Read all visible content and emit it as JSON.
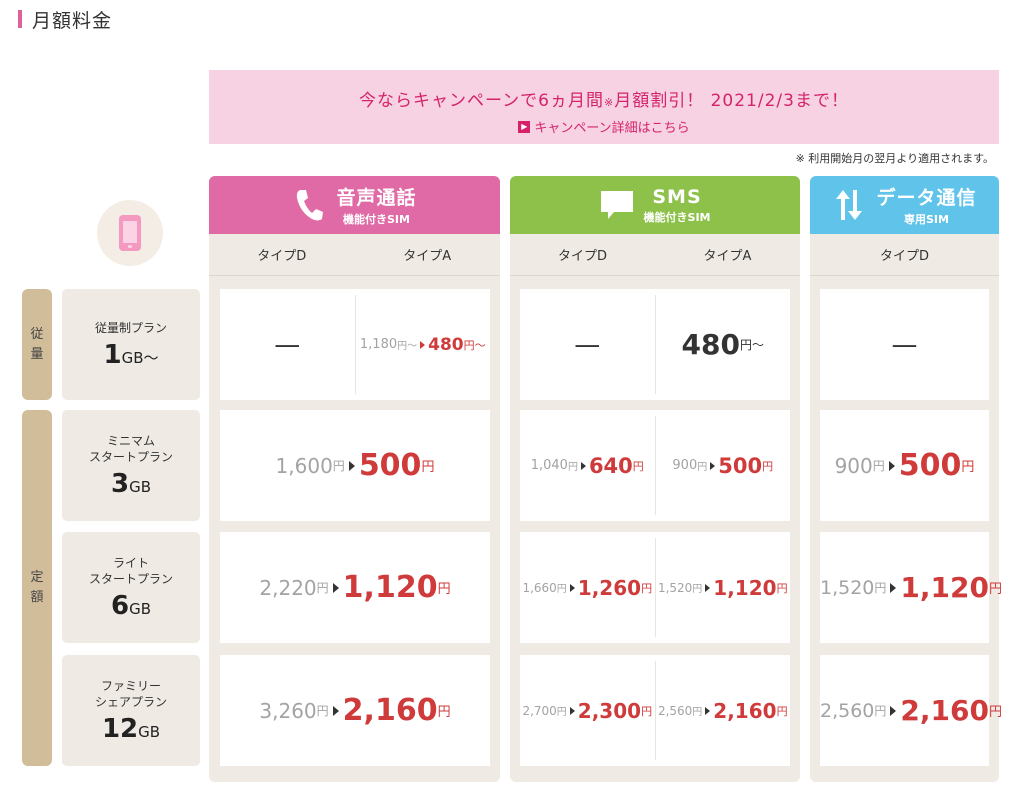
{
  "page": {
    "title": "月額料金"
  },
  "banner": {
    "text_before": "今ならキャンペーンで6ヵ月間",
    "note_mark": "※",
    "text_after": "月額割引！ 2021/2/3まで！",
    "link_label": "キャンペーン詳細はこちら"
  },
  "note": "※ 利用開始月の翌月より適用されます。",
  "columns": {
    "voice": {
      "name": "音声通話",
      "sub": "機能付きSIM",
      "types": [
        "タイプD",
        "タイプA"
      ]
    },
    "sms": {
      "name": "SMS",
      "sub": "機能付きSIM",
      "types": [
        "タイプD",
        "タイプA"
      ]
    },
    "data": {
      "name": "データ通信",
      "sub": "専用SIM",
      "types": [
        "タイプD"
      ]
    }
  },
  "row_groups": {
    "metered": [
      "従",
      "量"
    ],
    "flat": [
      "定",
      "額"
    ]
  },
  "plans": [
    {
      "name_lines": [
        "従量制プラン"
      ],
      "gb": "1",
      "unit": "GB〜"
    },
    {
      "name_lines": [
        "ミニマム",
        "スタートプラン"
      ],
      "gb": "3",
      "unit": "GB"
    },
    {
      "name_lines": [
        "ライト",
        "スタートプラン"
      ],
      "gb": "6",
      "unit": "GB"
    },
    {
      "name_lines": [
        "ファミリー",
        "シェアプラン"
      ],
      "gb": "12",
      "unit": "GB"
    }
  ],
  "units": {
    "yen": "円",
    "yen_from": "円〜",
    "dash": "—"
  },
  "prices": {
    "r0": {
      "voice_a_old": "1,180",
      "voice_a_new": "480",
      "sms_a": "480"
    },
    "r1": {
      "voice_old": "1,600",
      "voice_new": "500",
      "sms_d_old": "1,040",
      "sms_d_new": "640",
      "sms_a_old": "900",
      "sms_a_new": "500",
      "data_old": "900",
      "data_new": "500"
    },
    "r2": {
      "voice_old": "2,220",
      "voice_new": "1,120",
      "sms_d_old": "1,660",
      "sms_d_new": "1,260",
      "sms_a_old": "1,520",
      "sms_a_new": "1,120",
      "data_old": "1,520",
      "data_new": "1,120"
    },
    "r3": {
      "voice_old": "3,260",
      "voice_new": "2,160",
      "sms_d_old": "2,700",
      "sms_d_new": "2,300",
      "sms_a_old": "2,560",
      "sms_a_new": "2,160",
      "data_old": "2,560",
      "data_new": "2,160"
    }
  },
  "colors": {
    "voice": "#e06aa5",
    "sms": "#8dc14a",
    "data": "#5fc3ea",
    "price_red": "#cf3a3a",
    "banner_bg": "#f6d2e3",
    "banner_text": "#d6226b"
  }
}
